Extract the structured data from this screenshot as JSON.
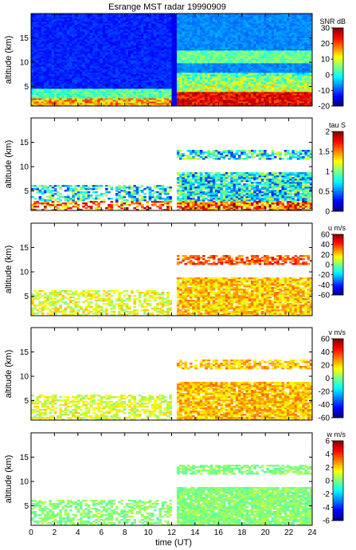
{
  "chart_data": {
    "type": "heatmap",
    "title": "Esrange MST radar 19990909",
    "xlabel": "time (UT)",
    "xlim": [
      0,
      24
    ],
    "xticks": [
      "0",
      "2",
      "4",
      "6",
      "8",
      "10",
      "12",
      "14",
      "16",
      "18",
      "20",
      "22",
      "24"
    ],
    "colormap": "jet",
    "panels": [
      {
        "name": "snr",
        "ylabel": "altitude (km)",
        "ylim": [
          1,
          20
        ],
        "yticks": [
          "5",
          "10",
          "15"
        ],
        "colorbar": {
          "label": "SNR dB",
          "range": [
            -20,
            30
          ],
          "ticks": [
            "30",
            "20",
            "10",
            "0",
            "-10",
            "-20"
          ]
        },
        "data_gap_UT": [
          12,
          12.5
        ],
        "notes": "strong echoes (20-30 dB) below 4 km after 12.5 UT; enhanced layer near 10-12 km"
      },
      {
        "name": "tau",
        "ylabel": "altitude (km)",
        "ylim": [
          1,
          20
        ],
        "yticks": [
          "5",
          "10",
          "15"
        ],
        "colorbar": {
          "label": "tau S",
          "range": [
            0,
            2
          ],
          "ticks": [
            "2",
            "1.5",
            "1",
            "0.5",
            "0"
          ]
        },
        "notes": "sparse data; layer near 12-13 km after 12.5 UT"
      },
      {
        "name": "u",
        "ylabel": "altitude (km)",
        "ylim": [
          1,
          20
        ],
        "yticks": [
          "5",
          "10",
          "15"
        ],
        "colorbar": {
          "label": "u m/s",
          "range": [
            -60,
            60
          ],
          "ticks": [
            "60",
            "40",
            "20",
            "0",
            "-20",
            "-40",
            "-60"
          ]
        }
      },
      {
        "name": "v",
        "ylabel": "altitude (km)",
        "ylim": [
          1,
          20
        ],
        "yticks": [
          "5",
          "10",
          "15"
        ],
        "colorbar": {
          "label": "v m/s",
          "range": [
            -60,
            60
          ],
          "ticks": [
            "60",
            "40",
            "20",
            "0",
            "-20",
            "-40",
            "-60"
          ]
        }
      },
      {
        "name": "w",
        "ylabel": "altitude (km)",
        "ylim": [
          1,
          20
        ],
        "yticks": [
          "5",
          "10",
          "15"
        ],
        "colorbar": {
          "label": "w m/s",
          "range": [
            -6,
            6
          ],
          "ticks": [
            "6",
            "4",
            "2",
            "0",
            "-2",
            "-4",
            "-6"
          ]
        }
      }
    ]
  }
}
